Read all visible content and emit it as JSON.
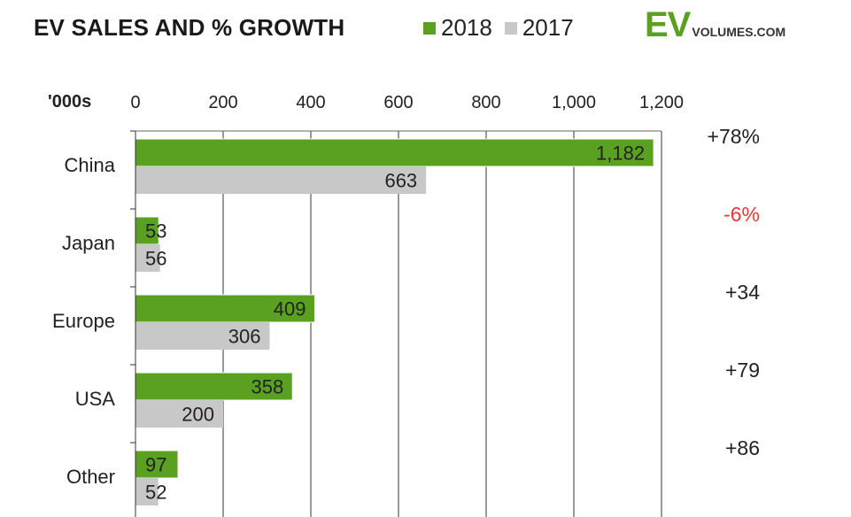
{
  "header": {
    "title": "EV SALES AND % GROWTH",
    "legend": [
      {
        "label": "2018",
        "color": "#5aa021"
      },
      {
        "label": "2017",
        "color": "#c8c8c8"
      }
    ],
    "logo_big": "EV",
    "logo_small": "VOLUMES.COM"
  },
  "chart_data": {
    "type": "bar",
    "orientation": "horizontal",
    "title": "EV SALES AND % GROWTH",
    "unit_label": "'000s",
    "categories": [
      "China",
      "Japan",
      "Europe",
      "USA",
      "Other"
    ],
    "series": [
      {
        "name": "2018",
        "color": "#5aa021",
        "values": [
          1182,
          53,
          409,
          358,
          97
        ],
        "labels": [
          "1,182",
          "53",
          "409",
          "358",
          "97"
        ]
      },
      {
        "name": "2017",
        "color": "#c8c8c8",
        "values": [
          663,
          56,
          306,
          200,
          52
        ],
        "labels": [
          "663",
          "56",
          "306",
          "200",
          "52"
        ]
      }
    ],
    "growth": [
      {
        "text": "+78%",
        "color": "#222222"
      },
      {
        "text": "-6%",
        "color": "#e53935"
      },
      {
        "text": "+34",
        "color": "#222222"
      },
      {
        "text": "+79",
        "color": "#222222"
      },
      {
        "text": "+86",
        "color": "#222222"
      }
    ],
    "xlim": [
      0,
      1200
    ],
    "ticks": [
      0,
      200,
      400,
      600,
      800,
      1000,
      1200
    ],
    "tick_labels": [
      "0",
      "200",
      "400",
      "600",
      "800",
      "1,000",
      "1,200"
    ],
    "grid": true,
    "legend_position": "top"
  }
}
